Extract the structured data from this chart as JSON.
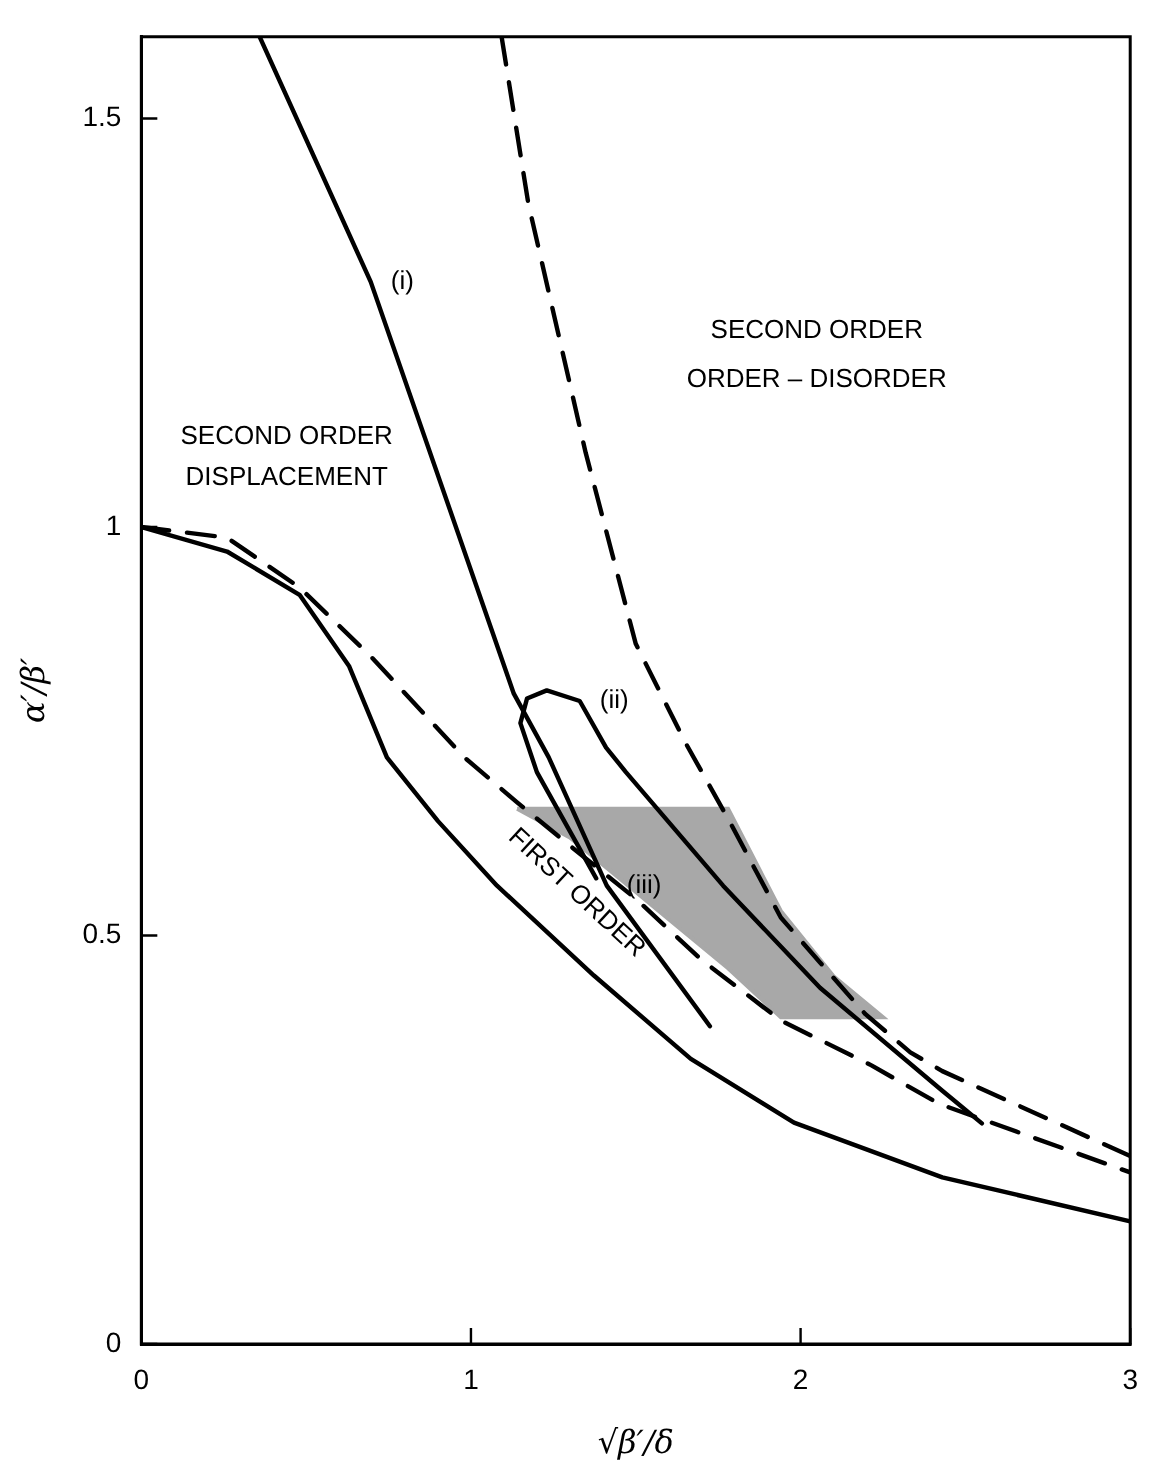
{
  "chart_data": {
    "type": "line",
    "xlabel": "√β′/δ",
    "ylabel": "α′/β′",
    "xlim": [
      0,
      3
    ],
    "ylim": [
      0,
      1.6
    ],
    "xticks": [
      0,
      1,
      2,
      3
    ],
    "yticks": [
      0,
      0.5,
      1,
      1.5
    ],
    "grid": false,
    "legend": false,
    "marker": "none",
    "series": [
      {
        "color": "#000000",
        "line_style": "solid",
        "x": [
          0,
          0.26,
          0.48,
          0.63,
          0.745,
          0.9,
          1.079,
          1.373,
          1.667,
          1.98,
          2.43,
          3
        ],
        "values": [
          1,
          0.97,
          0.917,
          0.83,
          0.718,
          0.64,
          0.561,
          0.451,
          0.349,
          0.271,
          0.204,
          0.15
        ]
      },
      {
        "color": "#000000",
        "line_style": "dashed",
        "x": [
          0,
          0.26,
          0.48,
          0.7,
          0.98,
          1.14,
          1.3,
          1.5,
          1.7,
          1.94,
          2.215,
          2.42,
          3
        ],
        "values": [
          1,
          0.987,
          0.926,
          0.84,
          0.718,
          0.663,
          0.61,
          0.545,
          0.47,
          0.396,
          0.341,
          0.294,
          0.21
        ]
      },
      {
        "color": "#000000",
        "line_style": "dashed",
        "x": [
          1.093,
          1.174,
          1.348,
          1.5,
          1.652,
          1.784,
          1.94,
          2.059,
          2.196,
          2.333,
          2.43,
          3
        ],
        "values": [
          1.6,
          1.396,
          1.091,
          0.857,
          0.735,
          0.64,
          0.522,
          0.467,
          0.404,
          0.357,
          0.334,
          0.23
        ]
      },
      {
        "color": "#000000",
        "line_style": "solid",
        "x": [
          0.359,
          0.696,
          1.13,
          1.236,
          1.412,
          1.725
        ],
        "values": [
          1.6,
          1.3,
          0.796,
          0.718,
          0.561,
          0.389
        ]
      },
      {
        "color": "#000000",
        "line_style": "solid",
        "x": [
          1.38,
          1.2,
          1.15,
          1.17,
          1.23,
          1.33,
          1.41,
          1.47,
          1.765,
          2.059,
          2.43,
          2.55
        ],
        "values": [
          0.57,
          0.7,
          0.76,
          0.79,
          0.8,
          0.787,
          0.73,
          0.7,
          0.561,
          0.436,
          0.31,
          0.27
        ]
      },
      {
        "type": "area",
        "color": "#a8a8a8",
        "x": [
          1.14,
          1.78,
          1.94,
          2.1,
          2.25,
          1.94,
          1.78,
          1.6,
          1.45,
          1.3,
          1.14
        ],
        "values": [
          0.655,
          0.655,
          0.53,
          0.45,
          0.4,
          0.4,
          0.46,
          0.52,
          0.57,
          0.62,
          0.655
        ]
      }
    ],
    "annotations": [
      "SECOND ORDER",
      "ORDER – DISORDER",
      "SECOND ORDER",
      "DISPLACEMENT",
      "FIRST ORDER",
      {
        "text": "(i)",
        "x": 0.696,
        "y": 1.3
      },
      {
        "text": "(ii)",
        "x": 1.33,
        "y": 0.787
      },
      {
        "text": "(iii)",
        "x": 1.412,
        "y": 0.561
      }
    ]
  }
}
